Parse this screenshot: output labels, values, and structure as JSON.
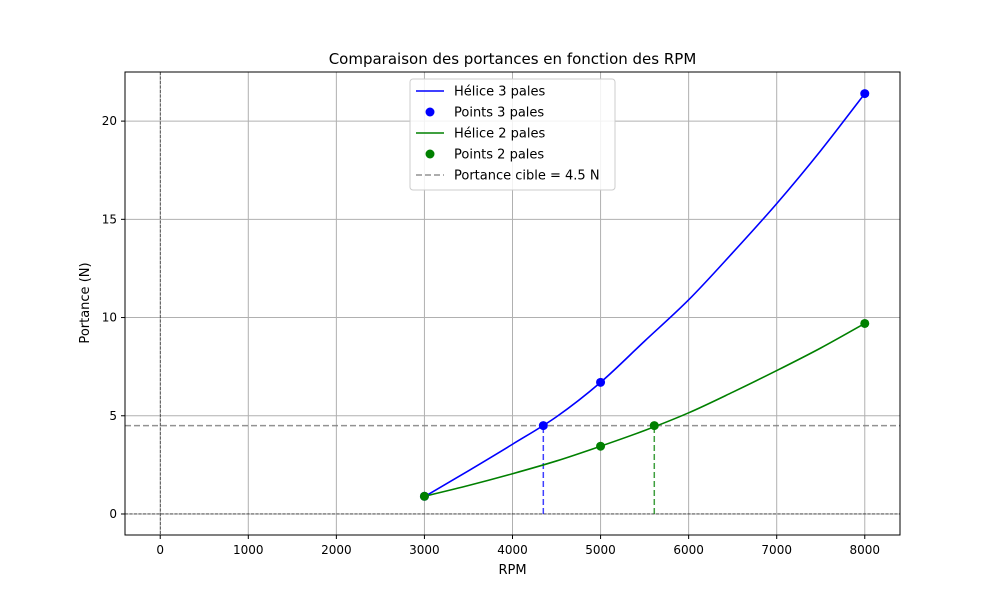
{
  "chart_data": {
    "type": "line",
    "title": "Comparaison des portances en fonction des RPM",
    "xlabel": "RPM",
    "ylabel": "Portance (N)",
    "xlim": [
      -400,
      8400
    ],
    "ylim": [
      -1.07,
      22.5
    ],
    "x_ticks": [
      0,
      1000,
      2000,
      3000,
      4000,
      5000,
      6000,
      7000,
      8000
    ],
    "y_ticks": [
      0,
      5,
      10,
      15,
      20
    ],
    "grid": true,
    "legend_position": "upper center",
    "series": [
      {
        "name": "Hélice 3 pales",
        "kind": "curve",
        "color": "#0000ff",
        "x": [
          3000,
          3500,
          4000,
          4500,
          5000,
          5500,
          6000,
          6500,
          7000,
          7500,
          8000
        ],
        "y": [
          0.88,
          2.2,
          3.55,
          4.95,
          6.7,
          8.8,
          10.9,
          13.3,
          15.8,
          18.5,
          21.4
        ]
      },
      {
        "name": "Points 3 pales",
        "kind": "points",
        "color": "#0000ff",
        "x": [
          3000,
          4350,
          5000,
          8000
        ],
        "y": [
          0.9,
          4.5,
          6.7,
          21.4
        ]
      },
      {
        "name": "Hélice 2 pales",
        "kind": "curve",
        "color": "#008000",
        "x": [
          3000,
          3500,
          4000,
          4500,
          5000,
          5500,
          6000,
          6500,
          7000,
          7500,
          8000
        ],
        "y": [
          0.9,
          1.45,
          2.05,
          2.7,
          3.45,
          4.25,
          5.15,
          6.2,
          7.3,
          8.45,
          9.7
        ]
      },
      {
        "name": "Points 2 pales",
        "kind": "points",
        "color": "#008000",
        "x": [
          3000,
          5000,
          5610,
          8000
        ],
        "y": [
          0.9,
          3.45,
          4.5,
          9.7
        ]
      },
      {
        "name": "Portance cible = 4.5 N",
        "kind": "hline",
        "color": "#808080",
        "y": 4.5
      }
    ],
    "vlines": [
      {
        "x": 4350,
        "y": 4.5,
        "color": "#0000ff"
      },
      {
        "x": 5610,
        "y": 4.5,
        "color": "#008000"
      }
    ],
    "zero_lines": {
      "x": 0,
      "y": 0
    }
  }
}
